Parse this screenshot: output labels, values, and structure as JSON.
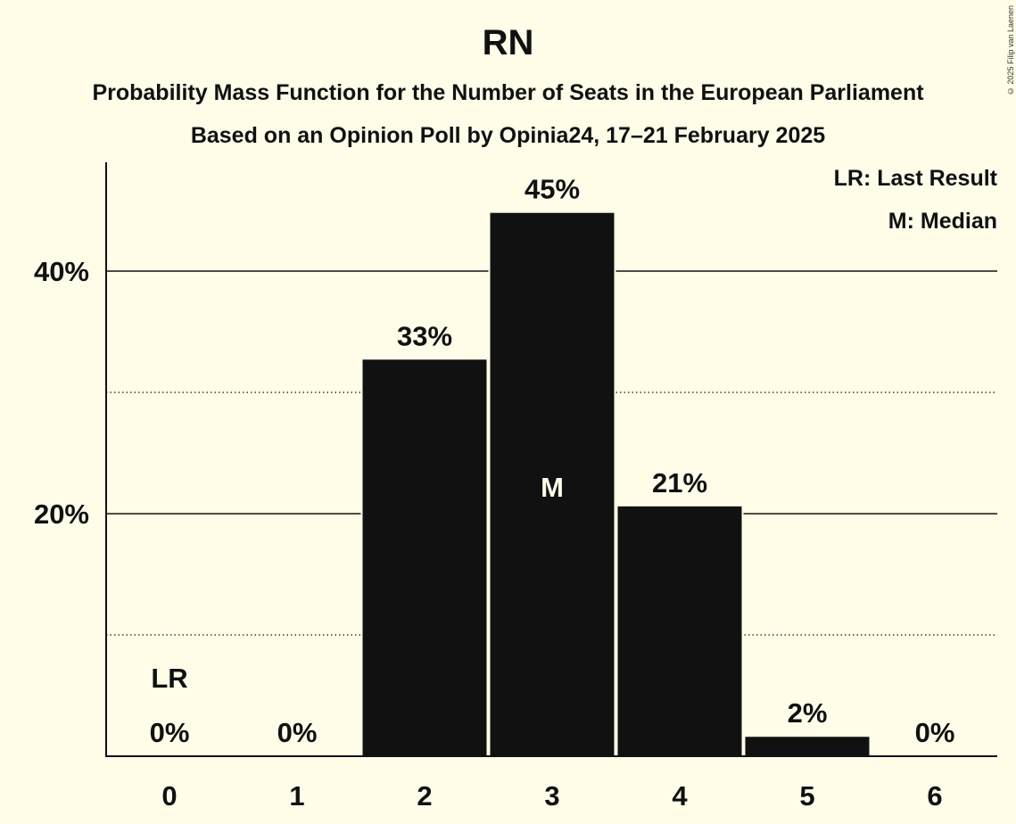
{
  "title": "RN",
  "subtitle": "Probability Mass Function for the Number of Seats in the European Parliament",
  "subtitle2": "Based on an Opinion Poll by Opinia24, 17–21 February 2025",
  "copyright": "© 2025 Filip van Laenen",
  "legend": {
    "last_result": "LR: Last Result",
    "median": "M: Median"
  },
  "colors": {
    "background": "#fffde8",
    "bar": "#111111"
  },
  "chart_data": {
    "type": "bar",
    "categories": [
      "0",
      "1",
      "2",
      "3",
      "4",
      "5",
      "6"
    ],
    "values": [
      0,
      0,
      32.7,
      44.8,
      20.6,
      1.6,
      0
    ],
    "value_labels": [
      "0%",
      "0%",
      "33%",
      "45%",
      "21%",
      "2%",
      "0%"
    ],
    "ylim": [
      0,
      49
    ],
    "yticks": [
      {
        "value": 20,
        "label": "20%"
      },
      {
        "value": 40,
        "label": "40%"
      }
    ],
    "minor_gridlines": [
      10,
      30
    ],
    "last_result": {
      "category": "0",
      "label": "LR"
    },
    "median": {
      "category": "3",
      "label": "M"
    }
  }
}
